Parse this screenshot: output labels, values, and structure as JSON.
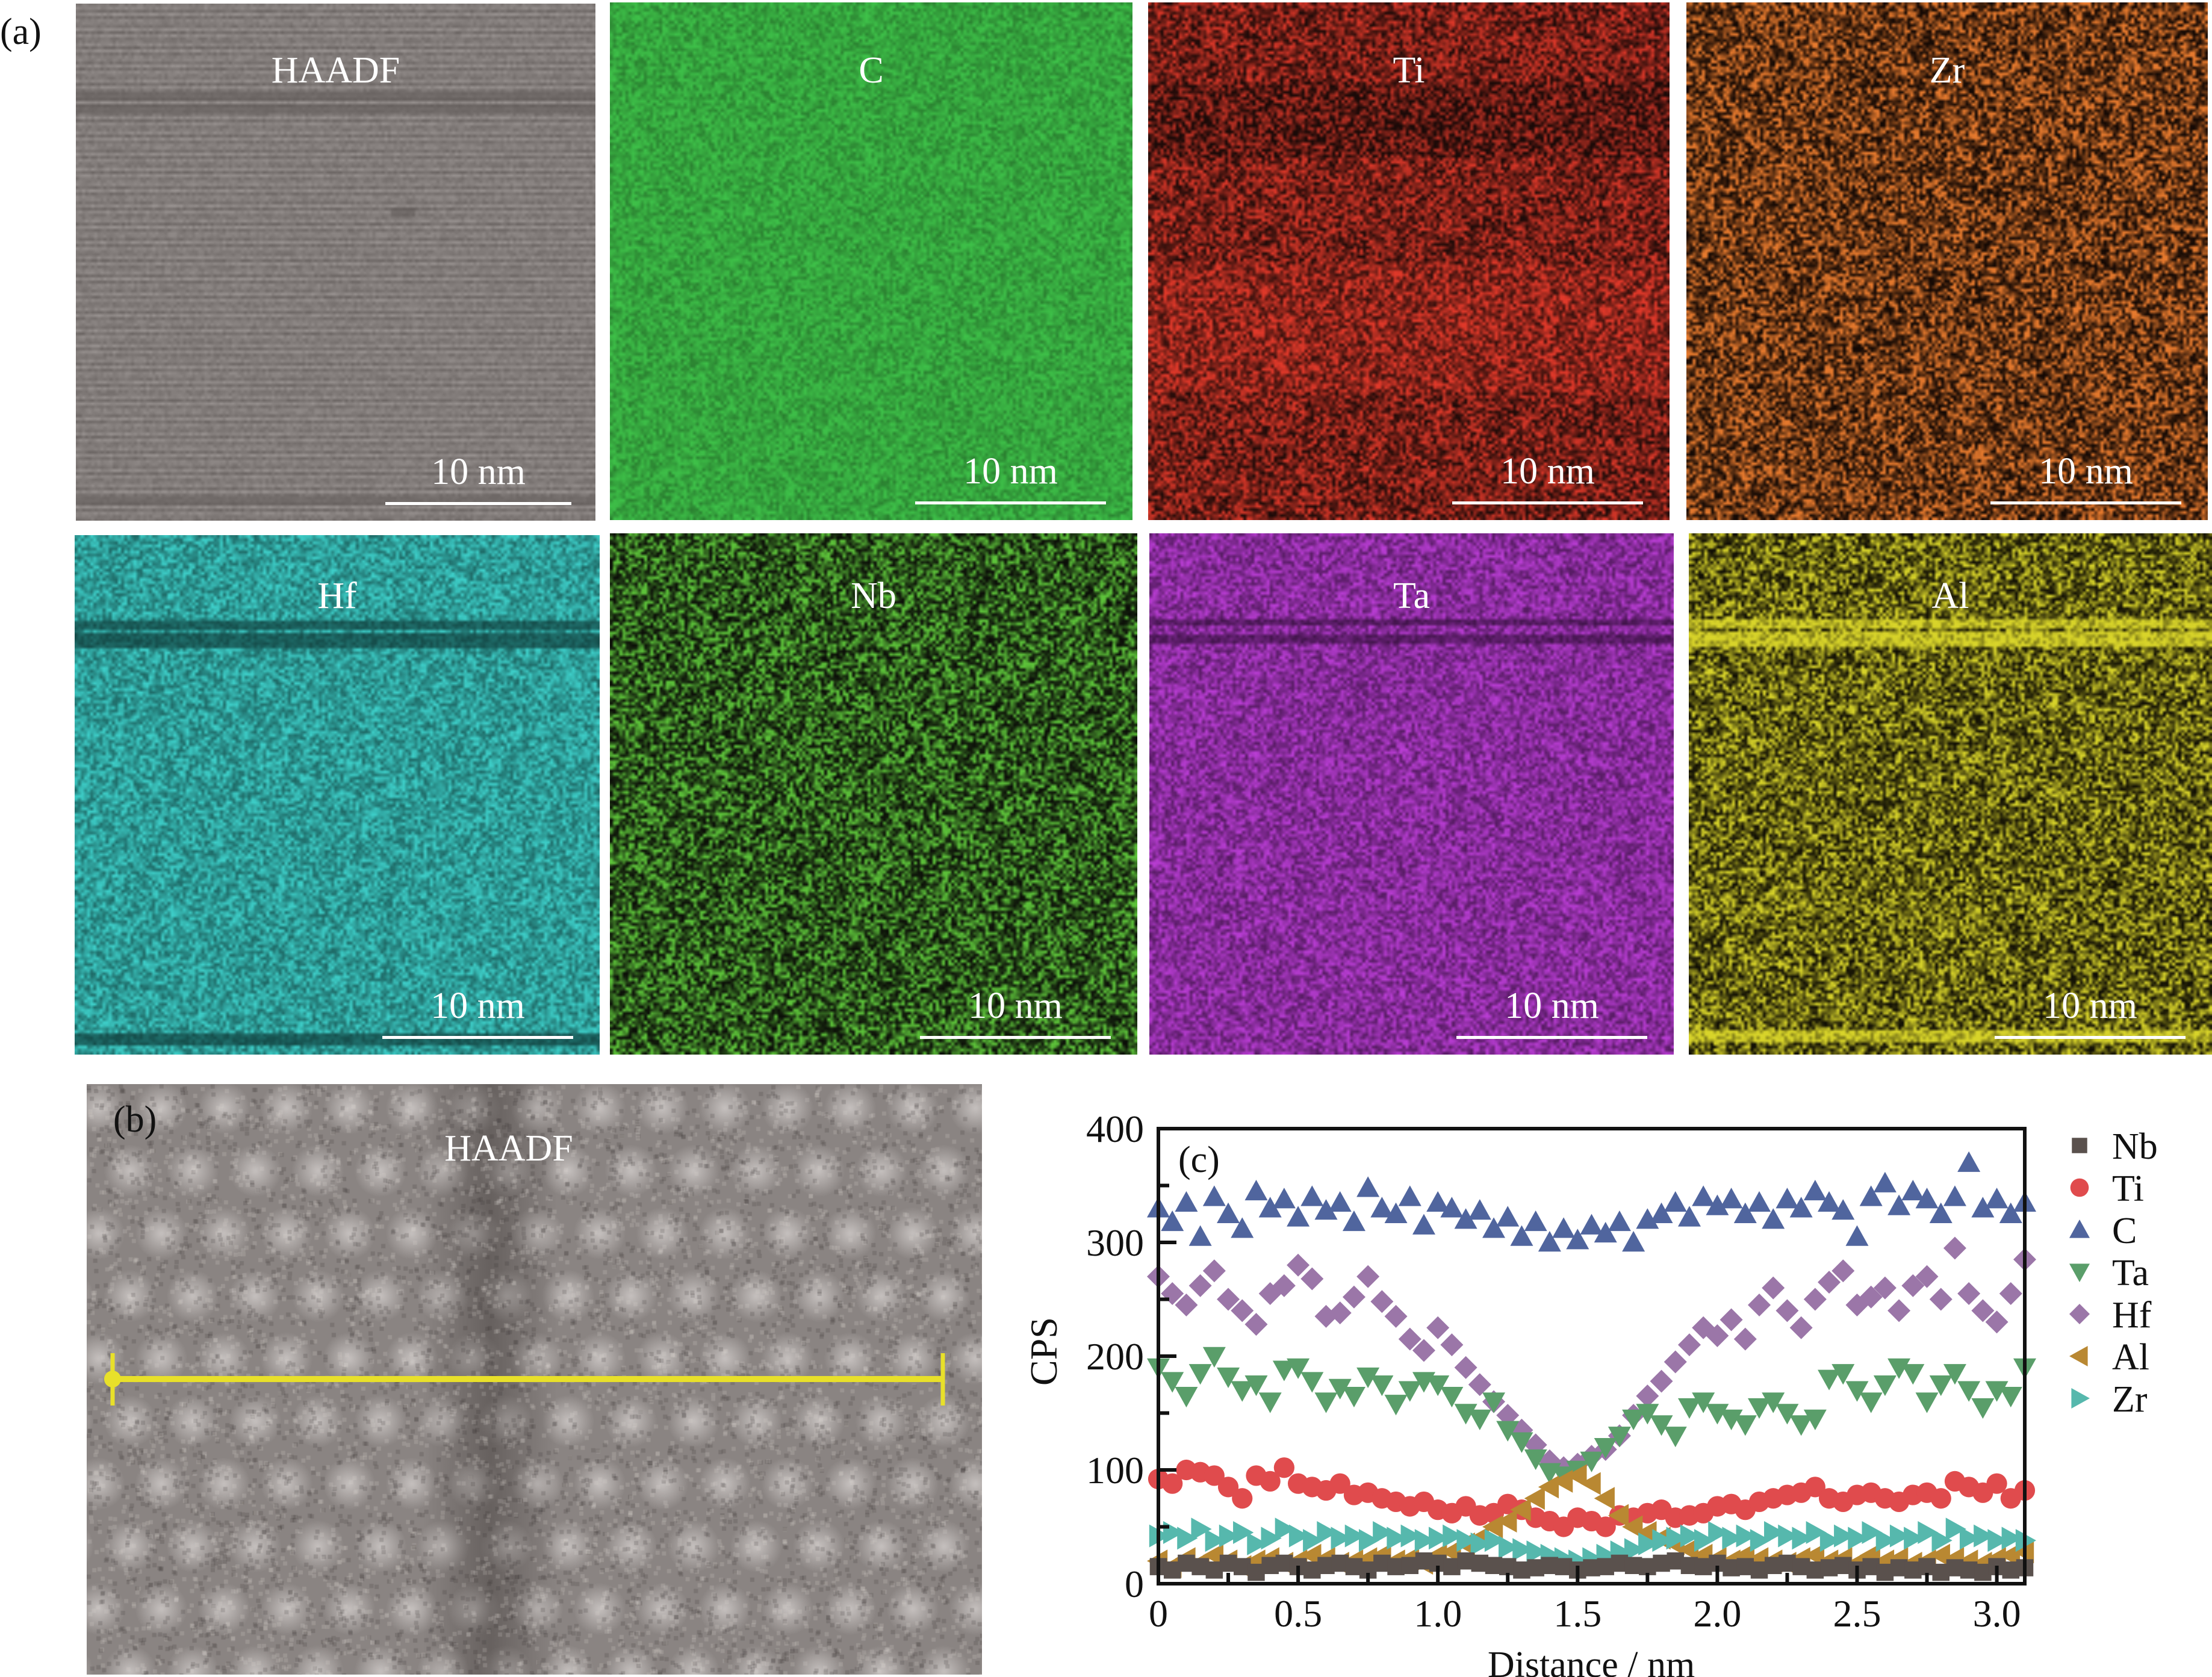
{
  "figure": {
    "panel_a_label": "(a)",
    "panel_b_label": "(b)",
    "panel_c_label": "(c)"
  },
  "maps": [
    {
      "label": "HAADF",
      "scale_bar": "10 nm",
      "color": "#a9a3a1",
      "dark": "#5e5856",
      "kind": "haadf"
    },
    {
      "label": "C",
      "scale_bar": "10 nm",
      "color": "#3fc34a",
      "dark": "#1f5a22",
      "kind": "dense"
    },
    {
      "label": "Ti",
      "scale_bar": "10 nm",
      "color": "#e0392a",
      "dark": "#1a0a08",
      "kind": "ti"
    },
    {
      "label": "Zr",
      "scale_bar": "10 nm",
      "color": "#e67a2e",
      "dark": "#120804",
      "kind": "sparse"
    },
    {
      "label": "Hf",
      "scale_bar": "10 nm",
      "color": "#3fd2cc",
      "dark": "#103c3a",
      "kind": "hf"
    },
    {
      "label": "Nb",
      "scale_bar": "10 nm",
      "color": "#5dc23a",
      "dark": "#0b0d08",
      "kind": "sparse"
    },
    {
      "label": "Ta",
      "scale_bar": "10 nm",
      "color": "#bb3ed6",
      "dark": "#2a0c30",
      "kind": "ta"
    },
    {
      "label": "Al",
      "scale_bar": "10 nm",
      "color": "#d8d42a",
      "dark": "#0e0c04",
      "kind": "al"
    }
  ],
  "haadf_b": {
    "label": "HAADF",
    "line_color": "#e8e02a"
  },
  "chart_data": {
    "type": "scatter",
    "title": "",
    "xlabel": "Distance / nm",
    "ylabel": "CPS",
    "xlim": [
      0,
      3.1
    ],
    "ylim": [
      0,
      400
    ],
    "xticks": [
      "0",
      "0.5",
      "1.0",
      "1.5",
      "2.0",
      "2.5",
      "3.0"
    ],
    "xtick_values": [
      0,
      0.5,
      1.0,
      1.5,
      2.0,
      2.5,
      3.0
    ],
    "yticks": [
      "0",
      "100",
      "200",
      "300",
      "400"
    ],
    "ytick_values": [
      0,
      100,
      200,
      300,
      400
    ],
    "grid": false,
    "legend_position": "outside-right",
    "x": [
      0,
      0.05,
      0.1,
      0.15,
      0.2,
      0.25,
      0.3,
      0.35,
      0.4,
      0.45,
      0.5,
      0.55,
      0.6,
      0.65,
      0.7,
      0.75,
      0.8,
      0.85,
      0.9,
      0.95,
      1.0,
      1.05,
      1.1,
      1.15,
      1.2,
      1.25,
      1.3,
      1.35,
      1.4,
      1.45,
      1.5,
      1.55,
      1.6,
      1.65,
      1.7,
      1.75,
      1.8,
      1.85,
      1.9,
      1.95,
      2.0,
      2.05,
      2.1,
      2.15,
      2.2,
      2.25,
      2.3,
      2.35,
      2.4,
      2.45,
      2.5,
      2.55,
      2.6,
      2.65,
      2.7,
      2.75,
      2.8,
      2.85,
      2.9,
      2.95,
      3.0,
      3.05,
      3.1
    ],
    "series": [
      {
        "name": "Nb",
        "marker": "square",
        "color": "#5a514d",
        "values": [
          15,
          12,
          18,
          15,
          12,
          18,
          15,
          10,
          16,
          18,
          15,
          12,
          16,
          18,
          15,
          12,
          18,
          15,
          16,
          20,
          18,
          15,
          20,
          18,
          16,
          15,
          12,
          14,
          16,
          15,
          12,
          14,
          15,
          18,
          16,
          15,
          18,
          20,
          16,
          15,
          18,
          14,
          15,
          12,
          16,
          18,
          15,
          12,
          14,
          16,
          12,
          15,
          10,
          14,
          12,
          15,
          10,
          14,
          12,
          10,
          15,
          12,
          14
        ]
      },
      {
        "name": "Ti",
        "marker": "circle",
        "color": "#e04b4d",
        "values": [
          92,
          88,
          100,
          98,
          95,
          85,
          75,
          95,
          90,
          102,
          88,
          85,
          82,
          88,
          78,
          80,
          75,
          72,
          68,
          72,
          65,
          62,
          68,
          60,
          62,
          70,
          65,
          58,
          55,
          50,
          58,
          55,
          50,
          60,
          58,
          62,
          65,
          58,
          60,
          62,
          68,
          70,
          65,
          72,
          75,
          78,
          80,
          85,
          75,
          72,
          78,
          80,
          75,
          72,
          78,
          80,
          75,
          90,
          85,
          80,
          88,
          75,
          82
        ]
      },
      {
        "name": "C",
        "marker": "triangle-up",
        "color": "#50659e",
        "values": [
          330,
          318,
          335,
          305,
          340,
          325,
          312,
          345,
          330,
          338,
          322,
          340,
          328,
          335,
          318,
          348,
          330,
          325,
          340,
          315,
          335,
          330,
          320,
          328,
          312,
          322,
          305,
          318,
          300,
          312,
          302,
          315,
          308,
          318,
          300,
          320,
          325,
          335,
          322,
          340,
          332,
          338,
          325,
          335,
          320,
          338,
          330,
          345,
          335,
          328,
          305,
          340,
          352,
          332,
          345,
          338,
          325,
          340,
          370,
          330,
          338,
          325,
          335
        ]
      },
      {
        "name": "Ta",
        "marker": "triangle-down",
        "color": "#5a9e6a",
        "values": [
          190,
          178,
          165,
          185,
          200,
          182,
          170,
          175,
          160,
          188,
          190,
          178,
          160,
          172,
          165,
          182,
          175,
          158,
          170,
          178,
          175,
          165,
          150,
          145,
          160,
          135,
          125,
          110,
          98,
          95,
          100,
          108,
          120,
          130,
          145,
          150,
          140,
          130,
          155,
          160,
          150,
          145,
          140,
          155,
          160,
          150,
          140,
          145,
          180,
          185,
          170,
          160,
          175,
          190,
          185,
          160,
          175,
          185,
          170,
          155,
          170,
          165,
          190
        ]
      },
      {
        "name": "Hf",
        "marker": "diamond",
        "color": "#9b76a8",
        "values": [
          270,
          255,
          245,
          262,
          275,
          250,
          240,
          228,
          255,
          262,
          280,
          268,
          235,
          238,
          252,
          270,
          248,
          235,
          215,
          205,
          225,
          210,
          190,
          175,
          160,
          148,
          135,
          122,
          108,
          102,
          105,
          112,
          118,
          130,
          148,
          165,
          178,
          195,
          210,
          225,
          218,
          232,
          215,
          245,
          260,
          240,
          225,
          250,
          265,
          275,
          245,
          252,
          260,
          240,
          262,
          270,
          250,
          295,
          255,
          240,
          230,
          255,
          285
        ]
      },
      {
        "name": "Al",
        "marker": "triangle-left",
        "color": "#b98832",
        "values": [
          20,
          15,
          22,
          18,
          25,
          20,
          15,
          20,
          22,
          18,
          20,
          25,
          22,
          18,
          20,
          22,
          25,
          20,
          22,
          18,
          25,
          28,
          35,
          40,
          50,
          55,
          65,
          75,
          85,
          90,
          95,
          88,
          75,
          60,
          50,
          45,
          40,
          35,
          30,
          25,
          22,
          20,
          25,
          22,
          20,
          18,
          22,
          25,
          20,
          22,
          18,
          25,
          20,
          22,
          18,
          20,
          25,
          22,
          20,
          18,
          22,
          25,
          28
        ]
      },
      {
        "name": "Zr",
        "marker": "triangle-right",
        "color": "#56b8ad",
        "values": [
          42,
          45,
          40,
          48,
          38,
          42,
          45,
          35,
          40,
          48,
          42,
          38,
          45,
          40,
          42,
          38,
          45,
          40,
          42,
          38,
          40,
          42,
          38,
          35,
          38,
          32,
          30,
          28,
          25,
          22,
          20,
          22,
          25,
          28,
          30,
          35,
          38,
          40,
          42,
          38,
          45,
          40,
          42,
          38,
          45,
          42,
          40,
          45,
          38,
          42,
          40,
          45,
          38,
          42,
          40,
          45,
          38,
          48,
          40,
          42,
          38,
          40,
          38
        ]
      }
    ]
  }
}
